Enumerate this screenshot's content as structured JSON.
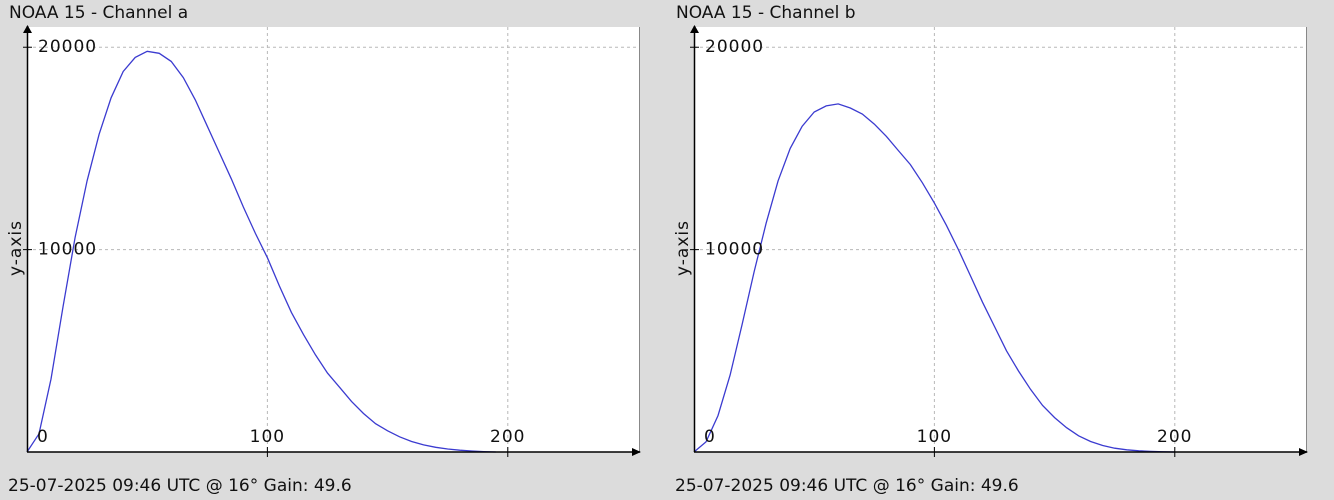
{
  "chart_data": [
    {
      "type": "line",
      "title": "NOAA 15 - Channel a",
      "footer": "25-07-2025 09:46 UTC @ 16° Gain: 49.6",
      "xlabel": "",
      "ylabel": "y-axis",
      "xlim": [
        0,
        255
      ],
      "ylim": [
        0,
        21000
      ],
      "x_ticks": [
        "0",
        "100",
        "200"
      ],
      "y_ticks": [
        "10000",
        "20000"
      ],
      "grid": true,
      "series": [
        {
          "color": "#3b3bd0",
          "points": [
            [
              0,
              0
            ],
            [
              5,
              900
            ],
            [
              10,
              3600
            ],
            [
              15,
              7200
            ],
            [
              20,
              10600
            ],
            [
              25,
              13400
            ],
            [
              30,
              15700
            ],
            [
              35,
              17500
            ],
            [
              40,
              18800
            ],
            [
              45,
              19500
            ],
            [
              50,
              19800
            ],
            [
              55,
              19700
            ],
            [
              60,
              19300
            ],
            [
              65,
              18500
            ],
            [
              70,
              17400
            ],
            [
              75,
              16100
            ],
            [
              80,
              14800
            ],
            [
              85,
              13500
            ],
            [
              90,
              12100
            ],
            [
              95,
              10800
            ],
            [
              100,
              9600
            ],
            [
              105,
              8200
            ],
            [
              110,
              6900
            ],
            [
              115,
              5800
            ],
            [
              120,
              4800
            ],
            [
              125,
              3900
            ],
            [
              130,
              3200
            ],
            [
              135,
              2500
            ],
            [
              140,
              1900
            ],
            [
              145,
              1400
            ],
            [
              150,
              1050
            ],
            [
              155,
              750
            ],
            [
              160,
              520
            ],
            [
              165,
              350
            ],
            [
              170,
              230
            ],
            [
              175,
              150
            ],
            [
              180,
              90
            ],
            [
              185,
              50
            ],
            [
              190,
              20
            ],
            [
              195,
              0
            ]
          ]
        }
      ]
    },
    {
      "type": "line",
      "title": "NOAA 15 - Channel b",
      "footer": "25-07-2025 09:46 UTC @ 16° Gain: 49.6",
      "xlabel": "",
      "ylabel": "y-axis",
      "xlim": [
        0,
        255
      ],
      "ylim": [
        0,
        21000
      ],
      "x_ticks": [
        "0",
        "100",
        "200"
      ],
      "y_ticks": [
        "10000",
        "20000"
      ],
      "grid": true,
      "series": [
        {
          "color": "#3b3bd0",
          "points": [
            [
              0,
              0
            ],
            [
              5,
              500
            ],
            [
              10,
              1800
            ],
            [
              15,
              3800
            ],
            [
              20,
              6300
            ],
            [
              25,
              8900
            ],
            [
              30,
              11300
            ],
            [
              35,
              13400
            ],
            [
              40,
              15000
            ],
            [
              45,
              16100
            ],
            [
              50,
              16800
            ],
            [
              55,
              17100
            ],
            [
              60,
              17200
            ],
            [
              65,
              17000
            ],
            [
              70,
              16700
            ],
            [
              75,
              16200
            ],
            [
              80,
              15600
            ],
            [
              85,
              14900
            ],
            [
              90,
              14200
            ],
            [
              95,
              13300
            ],
            [
              100,
              12300
            ],
            [
              105,
              11200
            ],
            [
              110,
              10000
            ],
            [
              115,
              8700
            ],
            [
              120,
              7400
            ],
            [
              125,
              6200
            ],
            [
              130,
              5000
            ],
            [
              135,
              4000
            ],
            [
              140,
              3100
            ],
            [
              145,
              2300
            ],
            [
              150,
              1700
            ],
            [
              155,
              1200
            ],
            [
              160,
              800
            ],
            [
              165,
              520
            ],
            [
              170,
              320
            ],
            [
              175,
              190
            ],
            [
              180,
              110
            ],
            [
              185,
              60
            ],
            [
              190,
              30
            ],
            [
              195,
              10
            ],
            [
              200,
              0
            ]
          ]
        }
      ]
    }
  ]
}
